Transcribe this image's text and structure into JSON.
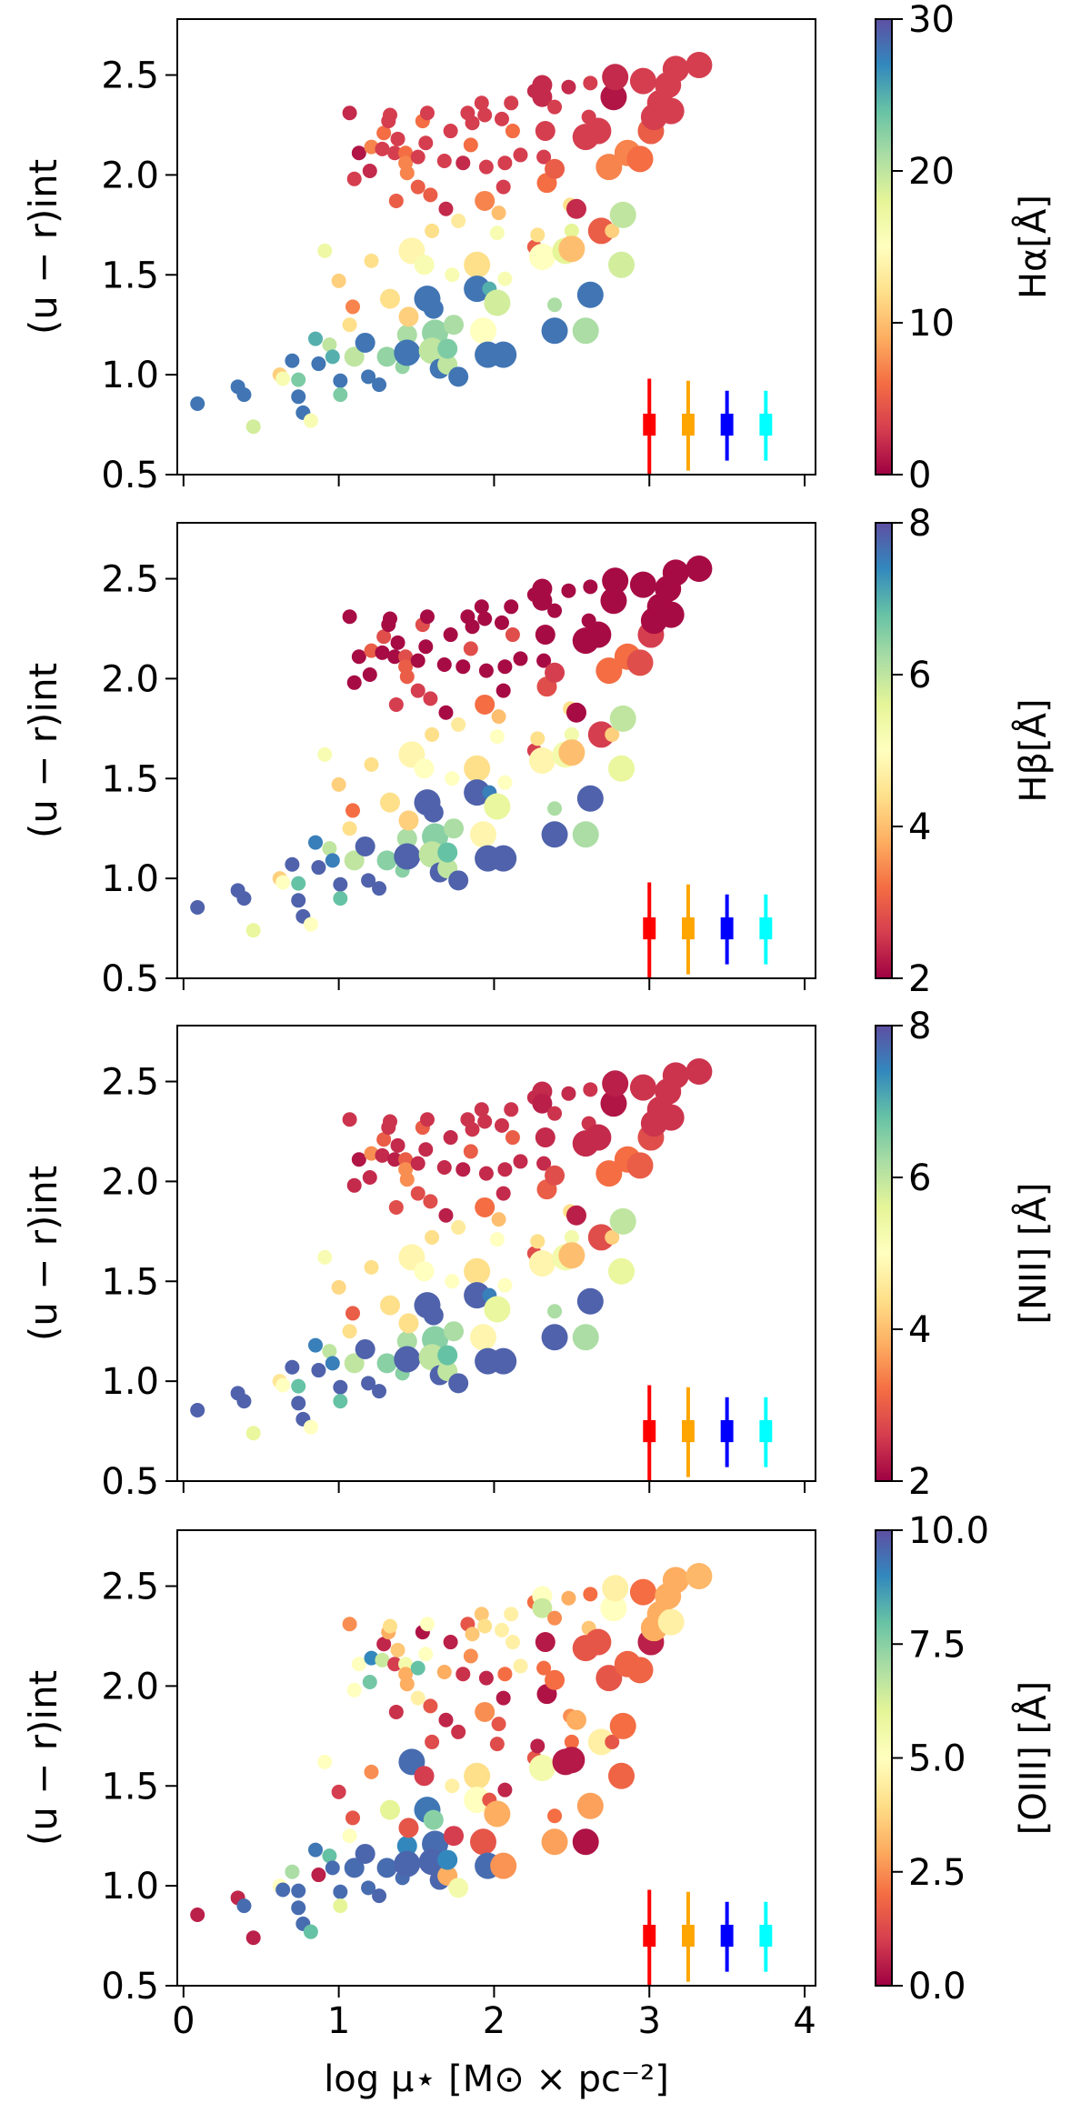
{
  "chart_data": [
    {
      "type": "scatter",
      "ylabel": "(u − r)int",
      "colorbar_label": "Hα[Å]",
      "clim": [
        0,
        30
      ],
      "cticks": [
        "0",
        "10",
        "20",
        "30"
      ],
      "cvals": [
        0,
        10,
        20,
        30
      ],
      "color_key": 3
    },
    {
      "type": "scatter",
      "ylabel": "(u − r)int",
      "colorbar_label": "Hβ[Å]",
      "clim": [
        2,
        8
      ],
      "cticks": [
        "2",
        "4",
        "6",
        "8"
      ],
      "cvals": [
        2,
        4,
        6,
        8
      ],
      "color_key": 4
    },
    {
      "type": "scatter",
      "ylabel": "(u − r)int",
      "colorbar_label": "[NII] [Å]",
      "clim": [
        2,
        8
      ],
      "cticks": [
        "2",
        "4",
        "6",
        "8"
      ],
      "cvals": [
        2,
        4,
        6,
        8
      ],
      "color_key": 5
    },
    {
      "type": "scatter",
      "ylabel": "(u − r)int",
      "colorbar_label": "[OIII] [Å]",
      "clim": [
        0,
        10
      ],
      "cticks": [
        "0.0",
        "2.5",
        "5.0",
        "7.5",
        "10.0"
      ],
      "cvals": [
        0,
        2.5,
        5,
        7.5,
        10
      ],
      "color_key": 6
    }
  ],
  "shared": {
    "xlabel": "log μ⋆ [M⊙ × pc⁻²]",
    "xlim": [
      -0.04,
      4.07
    ],
    "ylim": [
      0.5,
      2.78
    ],
    "xticks": [
      "0",
      "1",
      "2",
      "3",
      "4"
    ],
    "xtick_vals": [
      0,
      1,
      2,
      3,
      4
    ],
    "yticks": [
      "0.5",
      "1.0",
      "1.5",
      "2.0",
      "2.5"
    ],
    "ytick_vals": [
      0.5,
      1.0,
      1.5,
      2.0,
      2.5
    ],
    "colormap": "Spectral",
    "colormap_stops": [
      "#9e0142",
      "#d53e4f",
      "#f46d43",
      "#fdae61",
      "#fee08b",
      "#ffffbf",
      "#e6f598",
      "#abdda4",
      "#66c2a5",
      "#3288bd",
      "#5e4fa2"
    ],
    "point_columns": [
      "x",
      "y",
      "marker_size",
      "Halpha",
      "Hbeta",
      "NII",
      "OIII"
    ],
    "points": [
      [
        0.09,
        0.855,
        1,
        28,
        7.8,
        7.8,
        0.5
      ],
      [
        0.35,
        0.94,
        1,
        28,
        7.8,
        7.8,
        0.6
      ],
      [
        0.39,
        0.9,
        1,
        28,
        7.8,
        7.8,
        9.5
      ],
      [
        0.45,
        0.74,
        1,
        19,
        5.5,
        5.5,
        0.5
      ],
      [
        0.62,
        1.0,
        1,
        11,
        4.2,
        4.5,
        5
      ],
      [
        0.64,
        0.98,
        1,
        16,
        5,
        5,
        9.5
      ],
      [
        0.7,
        1.07,
        1,
        28,
        7.8,
        7.8,
        7
      ],
      [
        0.74,
        0.975,
        1,
        23,
        6.8,
        6.8,
        9.5
      ],
      [
        0.74,
        0.89,
        1,
        28,
        7.8,
        7.8,
        9.5
      ],
      [
        0.77,
        0.81,
        1,
        28,
        7.8,
        7.8,
        9.5
      ],
      [
        0.82,
        0.77,
        1,
        16,
        5,
        5,
        8
      ],
      [
        0.85,
        1.18,
        1,
        25,
        7.5,
        7.5,
        9.3
      ],
      [
        0.87,
        1.055,
        1,
        28,
        7.8,
        7.8,
        0.5
      ],
      [
        0.91,
        1.62,
        1,
        17,
        5.2,
        5.2,
        5
      ],
      [
        0.94,
        1.15,
        1,
        20,
        6,
        6,
        8
      ],
      [
        0.96,
        1.09,
        1,
        25,
        7.5,
        7.5,
        9.5
      ],
      [
        1.0,
        1.47,
        1,
        11,
        4.2,
        4.3,
        1
      ],
      [
        1.01,
        0.97,
        1,
        28,
        7.8,
        7.8,
        9.5
      ],
      [
        1.01,
        0.9,
        1,
        23,
        6.8,
        6.8,
        6
      ],
      [
        1.07,
        2.31,
        1,
        2,
        2.1,
        2.5,
        2.5
      ],
      [
        1.07,
        1.25,
        1,
        12,
        4.4,
        4.4,
        5
      ],
      [
        1.09,
        1.34,
        1,
        7,
        3.2,
        3,
        1.5
      ],
      [
        1.1,
        1.98,
        1,
        3,
        2.1,
        2.4,
        5
      ],
      [
        1.1,
        1.09,
        2,
        20,
        6,
        6,
        9.5
      ],
      [
        1.13,
        2.11,
        1,
        1,
        2.1,
        2.2,
        5
      ],
      [
        1.17,
        1.16,
        2,
        28,
        7.8,
        7.8,
        9.6
      ],
      [
        1.19,
        0.99,
        1,
        28,
        7.8,
        7.8,
        9.5
      ],
      [
        1.2,
        2.02,
        1,
        2,
        2.1,
        2.4,
        7.8
      ],
      [
        1.21,
        1.57,
        1,
        12,
        4.4,
        4.4,
        2.5
      ],
      [
        1.21,
        2.14,
        1,
        7,
        3,
        3.5,
        9
      ],
      [
        1.26,
        0.95,
        1,
        28,
        7.8,
        7.8,
        9.6
      ],
      [
        1.28,
        2.13,
        1,
        3,
        2.1,
        2.4,
        6.5
      ],
      [
        1.29,
        2.21,
        1,
        6,
        2.8,
        3,
        0.6
      ],
      [
        1.31,
        1.09,
        2,
        22,
        6.5,
        6.5,
        9.5
      ],
      [
        1.32,
        2.27,
        1,
        3,
        2.1,
        2.5,
        3
      ],
      [
        1.33,
        1.38,
        2,
        12,
        4.4,
        4.4,
        6
      ],
      [
        1.33,
        2.3,
        1,
        3,
        2.1,
        2.5,
        4
      ],
      [
        1.36,
        2.11,
        1,
        3,
        2.1,
        2.3,
        1
      ],
      [
        1.37,
        1.87,
        1,
        5,
        2.6,
        2.8,
        0.8
      ],
      [
        1.38,
        2.18,
        1,
        3,
        2.1,
        2.4,
        3.5
      ],
      [
        1.41,
        1.04,
        1,
        22,
        6.5,
        6.5,
        9.5
      ],
      [
        1.43,
        2.11,
        1,
        6,
        2.8,
        3,
        5.5
      ],
      [
        1.44,
        1.2,
        2,
        21,
        6.2,
        6.2,
        9
      ],
      [
        1.44,
        1.11,
        3,
        28,
        7.8,
        7.8,
        9.6
      ],
      [
        1.43,
        2.06,
        1,
        7,
        3,
        3.5,
        3
      ],
      [
        1.44,
        2.01,
        1,
        7,
        3,
        3.5,
        3
      ],
      [
        1.45,
        1.29,
        2,
        11,
        4.2,
        4.4,
        1.5
      ],
      [
        1.47,
        1.62,
        3,
        14,
        4.8,
        4.8,
        9.5
      ],
      [
        1.51,
        1.94,
        1,
        5,
        2.6,
        2.8,
        4.5
      ],
      [
        1.51,
        2.09,
        1,
        3,
        2.1,
        2.4,
        8
      ],
      [
        1.54,
        2.27,
        1,
        6,
        2.8,
        3,
        0.3
      ],
      [
        1.55,
        1.55,
        2,
        16,
        5,
        5,
        1
      ],
      [
        1.56,
        2.16,
        1,
        3,
        2.1,
        2.4,
        5
      ],
      [
        1.57,
        2.31,
        1,
        3,
        2.1,
        2.5,
        5
      ],
      [
        1.57,
        1.38,
        3,
        28,
        7.8,
        7.8,
        9.3
      ],
      [
        1.59,
        1.9,
        1,
        5,
        2.6,
        2.8,
        1.5
      ],
      [
        1.61,
        1.33,
        2,
        28,
        7.8,
        7.8,
        7.5
      ],
      [
        1.6,
        1.72,
        1,
        12,
        4.4,
        4.4,
        1.3
      ],
      [
        1.62,
        1.21,
        3,
        22,
        6.5,
        6.5,
        9.5
      ],
      [
        1.6,
        1.12,
        3,
        20,
        6,
        6,
        9.6
      ],
      [
        1.65,
        1.03,
        2,
        28,
        7.8,
        7.8,
        9.6
      ],
      [
        1.68,
        2.07,
        1,
        3,
        2.1,
        2.4,
        3
      ],
      [
        1.69,
        1.83,
        1,
        2,
        2.1,
        2.3,
        0.6
      ],
      [
        1.7,
        1.05,
        2,
        20,
        6,
        6,
        3
      ],
      [
        1.7,
        1.13,
        2,
        23,
        6.8,
        6.8,
        9
      ],
      [
        1.72,
        2.22,
        1,
        3,
        2.1,
        2.4,
        0.5
      ],
      [
        1.73,
        1.5,
        1,
        16,
        5,
        5,
        4.5
      ],
      [
        1.74,
        1.25,
        2,
        21,
        6.2,
        6.2,
        1
      ],
      [
        1.77,
        1.77,
        1,
        13,
        4.6,
        4.6,
        0.8
      ],
      [
        1.77,
        0.99,
        2,
        28,
        7.8,
        7.8,
        5.5
      ],
      [
        1.8,
        2.06,
        1,
        2,
        2.1,
        2.3,
        0.8
      ],
      [
        1.83,
        2.31,
        1,
        3,
        2.1,
        2.5,
        1.5
      ],
      [
        1.85,
        2.15,
        1,
        6,
        2.8,
        3,
        2.5
      ],
      [
        1.86,
        2.26,
        1,
        3,
        2.1,
        2.5,
        3.5
      ],
      [
        1.89,
        1.55,
        3,
        12,
        4.4,
        4.4,
        4
      ],
      [
        1.89,
        1.43,
        3,
        28,
        7.8,
        7.8,
        5
      ],
      [
        1.92,
        2.36,
        1,
        3,
        2.1,
        2.5,
        3.5
      ],
      [
        1.93,
        1.22,
        3,
        15,
        4.8,
        4.8,
        1.5
      ],
      [
        1.94,
        1.87,
        2,
        7,
        3.2,
        3.2,
        2.5
      ],
      [
        1.94,
        2.3,
        1,
        3,
        2.1,
        2.5,
        4
      ],
      [
        1.95,
        2.04,
        1,
        3,
        2.1,
        2.4,
        0.6
      ],
      [
        1.96,
        1.1,
        3,
        28,
        7.8,
        7.8,
        9.5
      ],
      [
        1.97,
        1.43,
        1,
        25,
        7.5,
        7.5,
        1.5
      ],
      [
        2.02,
        1.36,
        3,
        19,
        5.5,
        5.5,
        3
      ],
      [
        2.02,
        1.71,
        1,
        16,
        5,
        5,
        1.3
      ],
      [
        2.03,
        1.81,
        1,
        10,
        4,
        4,
        1.5
      ],
      [
        2.06,
        1.1,
        3,
        28,
        7.8,
        7.8,
        2.6
      ],
      [
        2.06,
        1.94,
        1,
        3,
        2.1,
        2.4,
        0.4
      ],
      [
        2.07,
        2.06,
        1,
        3,
        2.1,
        2.4,
        2
      ],
      [
        2.05,
        2.28,
        1,
        3,
        2.1,
        2.5,
        4.5
      ],
      [
        2.07,
        1.48,
        1,
        16,
        5,
        5,
        0.6
      ],
      [
        2.11,
        2.36,
        1,
        3,
        2.1,
        2.5,
        4.5
      ],
      [
        2.12,
        2.22,
        1,
        6,
        2.8,
        3,
        4.5
      ],
      [
        2.17,
        2.1,
        1,
        3,
        2.1,
        2.4,
        4.5
      ],
      [
        2.26,
        1.64,
        1,
        5,
        2.6,
        2.8,
        1.5
      ],
      [
        2.28,
        1.7,
        1,
        12,
        4.4,
        4.4,
        0.5
      ],
      [
        2.26,
        2.42,
        1,
        2,
        2.1,
        2.4,
        2
      ],
      [
        2.31,
        2.45,
        2,
        2,
        2.1,
        2.4,
        5
      ],
      [
        2.31,
        2.39,
        2,
        2,
        2.1,
        2.3,
        6.5
      ],
      [
        2.31,
        1.59,
        3,
        15,
        4.8,
        4.8,
        5.5
      ],
      [
        2.32,
        2.09,
        1,
        3,
        2.1,
        2.4,
        2
      ],
      [
        2.33,
        2.22,
        2,
        3,
        2.1,
        2.4,
        0.4
      ],
      [
        2.34,
        1.96,
        2,
        6,
        2.8,
        3,
        0.3
      ],
      [
        2.39,
        2.03,
        2,
        5,
        2.6,
        2.8,
        2
      ],
      [
        2.39,
        1.22,
        3,
        28,
        7.8,
        7.8,
        2.8
      ],
      [
        2.39,
        1.35,
        1,
        21,
        6.2,
        6.2,
        2
      ],
      [
        2.39,
        2.34,
        1,
        3,
        2.1,
        2.5,
        2.5
      ],
      [
        2.46,
        1.62,
        3,
        18,
        5.3,
        5.3,
        0.4
      ],
      [
        2.49,
        1.85,
        1,
        12,
        4.4,
        4.4,
        2.5
      ],
      [
        2.48,
        2.44,
        1,
        2,
        2.1,
        2.4,
        3
      ],
      [
        2.5,
        1.72,
        1,
        18,
        5.3,
        5.3,
        2
      ],
      [
        2.53,
        1.83,
        2,
        2,
        2.1,
        2.3,
        3
      ],
      [
        2.5,
        1.63,
        3,
        10,
        4,
        4,
        0.4
      ],
      [
        2.59,
        1.22,
        3,
        21,
        6.2,
        6.2,
        0.3
      ],
      [
        2.59,
        2.19,
        3,
        3,
        2.1,
        2.4,
        1.5
      ],
      [
        2.61,
        2.29,
        1,
        3,
        2.1,
        2.5,
        3.5
      ],
      [
        2.62,
        2.46,
        1,
        3,
        2.1,
        2.5,
        2
      ],
      [
        2.62,
        1.4,
        3,
        28,
        7.8,
        7.8,
        2.8
      ],
      [
        2.67,
        2.22,
        3,
        3,
        2.1,
        2.4,
        1.5
      ],
      [
        2.69,
        1.72,
        3,
        5,
        2.6,
        2.8,
        4.5
      ],
      [
        2.74,
        2.04,
        3,
        7,
        3.2,
        3.2,
        1.5
      ],
      [
        2.76,
        1.72,
        1,
        11,
        4.2,
        4.2,
        1.5
      ],
      [
        2.77,
        2.39,
        3,
        1,
        2.1,
        2.2,
        5
      ],
      [
        2.78,
        2.49,
        3,
        2,
        2.1,
        2.3,
        4.5
      ],
      [
        2.82,
        1.55,
        3,
        19,
        5.5,
        5.5,
        1.8
      ],
      [
        2.83,
        1.8,
        3,
        20,
        6,
        6,
        2
      ],
      [
        2.86,
        2.11,
        3,
        7,
        3.2,
        3.2,
        1.8
      ],
      [
        2.94,
        2.08,
        3,
        6,
        2.8,
        3,
        1.8
      ],
      [
        2.96,
        2.47,
        3,
        3,
        2.1,
        2.5,
        2
      ],
      [
        3.01,
        2.22,
        3,
        5,
        2.6,
        2.8,
        0.5
      ],
      [
        3.03,
        2.29,
        3,
        3,
        2.1,
        2.5,
        3
      ],
      [
        3.07,
        2.36,
        3,
        3,
        2.1,
        2.5,
        3
      ],
      [
        3.14,
        2.32,
        3,
        3,
        2.1,
        2.5,
        4.5
      ],
      [
        3.12,
        2.45,
        3,
        3,
        2.1,
        2.5,
        3
      ],
      [
        3.17,
        2.53,
        3,
        3,
        2.1,
        2.5,
        3
      ],
      [
        3.32,
        2.55,
        3,
        3,
        2.1,
        2.5,
        3.2
      ]
    ],
    "error_bars": [
      {
        "x": 3.0,
        "y": 0.75,
        "ylow": 0.5,
        "yhigh": 0.98,
        "xerr": 0.07,
        "yerr_box": 0.055,
        "color": "#ff0000"
      },
      {
        "x": 3.25,
        "y": 0.75,
        "ylow": 0.52,
        "yhigh": 0.97,
        "xerr": 0.07,
        "yerr_box": 0.055,
        "color": "#ffa500"
      },
      {
        "x": 3.5,
        "y": 0.75,
        "ylow": 0.57,
        "yhigh": 0.92,
        "xerr": 0.07,
        "yerr_box": 0.055,
        "color": "#0000ff"
      },
      {
        "x": 3.75,
        "y": 0.75,
        "ylow": 0.57,
        "yhigh": 0.92,
        "xerr": 0.07,
        "yerr_box": 0.055,
        "color": "#00ffff"
      }
    ]
  }
}
